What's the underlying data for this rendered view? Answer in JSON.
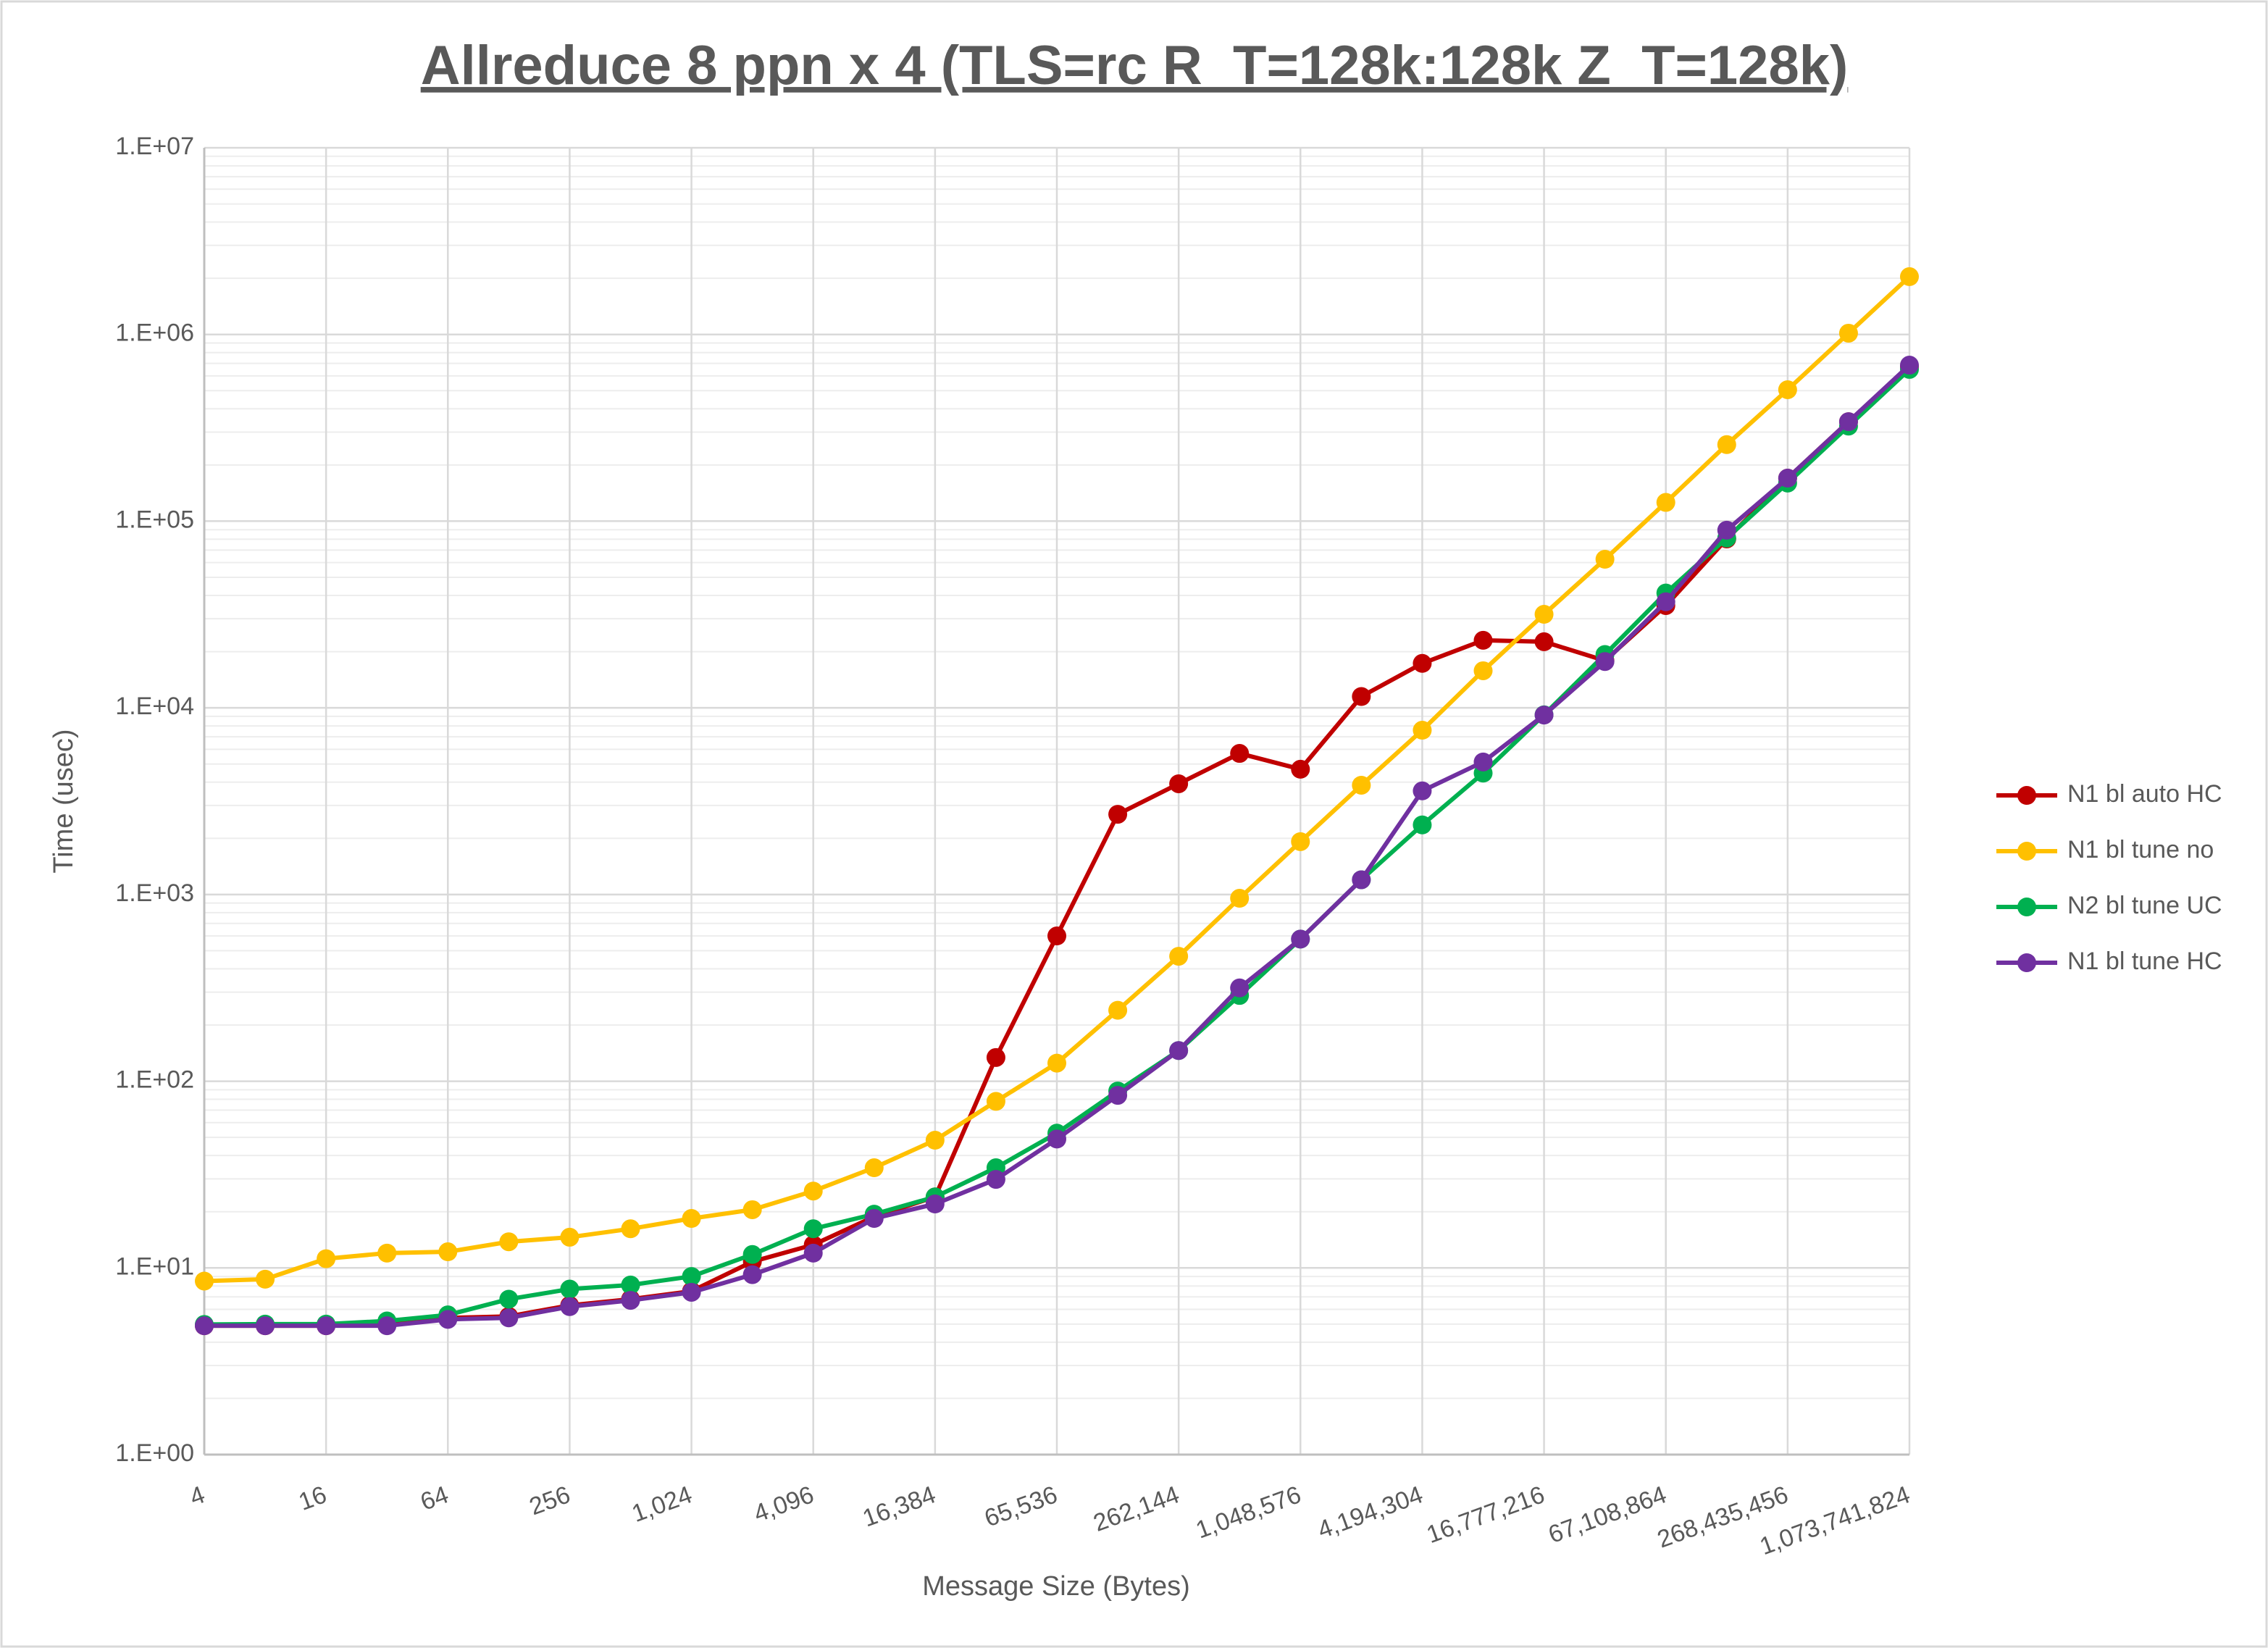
{
  "chart_data": {
    "type": "line",
    "title": "Allreduce 8 ppn x 4 (TLS=rc R_T=128k:128k Z_T=128k)",
    "x_label": "Message Size (Bytes)",
    "y_label": "Time (usec)",
    "x_scale": "log2",
    "y_scale": "log10",
    "grid": true,
    "minor_grid": true,
    "legend": "right",
    "x": [
      4,
      8,
      16,
      32,
      64,
      128,
      256,
      512,
      1024,
      2048,
      4096,
      8192,
      16384,
      32768,
      65536,
      131072,
      262144,
      524288,
      1048576,
      2097152,
      4194304,
      8388608,
      16777216,
      33554432,
      67108864,
      134217728,
      268435456,
      536870912,
      1073741824
    ],
    "xlim": [
      4,
      1073741824
    ],
    "xticks": [
      4,
      16,
      64,
      256,
      {
        "value": 1024,
        "label": "1,024"
      },
      {
        "value": 4096,
        "label": "4,096"
      },
      {
        "value": 16384,
        "label": "16,384"
      },
      {
        "value": 65536,
        "label": "65,536"
      },
      {
        "value": 262144,
        "label": "262,144"
      },
      {
        "value": 1048576,
        "label": "1,048,576"
      },
      {
        "value": 4194304,
        "label": "4,194,304"
      },
      {
        "value": 16777216,
        "label": "16,777,216"
      },
      {
        "value": 67108864,
        "label": "67,108,864"
      },
      {
        "value": 268435456,
        "label": "268,435,456"
      },
      {
        "value": 1073741824,
        "label": "1,073,741,824"
      }
    ],
    "ylim": [
      1,
      10000000
    ],
    "yticks": [
      {
        "value": 1,
        "label": "1.E+00"
      },
      {
        "value": 10,
        "label": "1.E+01"
      },
      {
        "value": 100,
        "label": "1.E+02"
      },
      {
        "value": 1000,
        "label": "1.E+03"
      },
      {
        "value": 10000,
        "label": "1.E+04"
      },
      {
        "value": 100000,
        "label": "1.E+05"
      },
      {
        "value": 1000000,
        "label": "1.E+06"
      },
      {
        "value": 10000000,
        "label": "1.E+07"
      }
    ],
    "series": [
      {
        "name": "N1 bl auto HC",
        "color": "#c00000",
        "values": [
          4.9,
          4.9,
          4.9,
          5.0,
          5.4,
          5.5,
          6.3,
          6.8,
          7.5,
          10.8,
          13.3,
          18.8,
          24,
          134,
          600,
          2690,
          3920,
          5700,
          4690,
          11500,
          17300,
          23000,
          22600,
          17900,
          35300,
          80300,
          170000,
          341000,
          673000
        ]
      },
      {
        "name": "N1 bl tune no",
        "color": "#ffc000",
        "values": [
          8.5,
          8.7,
          11.2,
          12,
          12.2,
          13.8,
          14.6,
          16.2,
          18.4,
          20.5,
          25.8,
          34.4,
          48.3,
          78,
          125,
          240,
          467,
          955,
          1920,
          3850,
          7590,
          15800,
          31700,
          62500,
          126000,
          257000,
          506000,
          1016000,
          2040000
        ]
      },
      {
        "name": "N2 bl tune UC",
        "color": "#00b050",
        "values": [
          4.98,
          5.0,
          5.0,
          5.2,
          5.6,
          6.8,
          7.7,
          8.1,
          9.0,
          11.8,
          16.2,
          19.4,
          24,
          34.4,
          52.7,
          88.6,
          146,
          288,
          577,
          1200,
          2360,
          4470,
          9180,
          19300,
          41200,
          81200,
          160000,
          323000,
          650000
        ]
      },
      {
        "name": "N1 bl tune HC",
        "color": "#7030a0",
        "values": [
          4.9,
          4.9,
          4.9,
          4.9,
          5.3,
          5.4,
          6.2,
          6.7,
          7.4,
          9.2,
          12,
          18.4,
          22,
          29.8,
          49,
          84,
          146,
          316,
          577,
          1200,
          3590,
          5130,
          9150,
          17700,
          37000,
          89500,
          170000,
          341000,
          685000
        ]
      }
    ]
  }
}
